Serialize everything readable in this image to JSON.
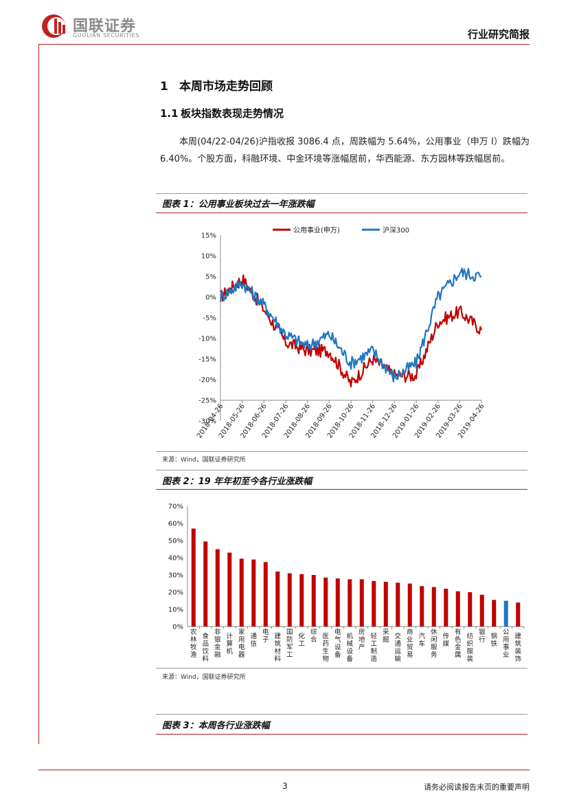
{
  "header": {
    "brand_cn": "国联证券",
    "brand_en": "GUOLIAN SECURITIES",
    "report_type": "行业研究简报"
  },
  "section": {
    "number": "1",
    "title": "本周市场走势回顾",
    "sub_number": "1.1",
    "sub_title": "板块指数表现走势情况"
  },
  "paragraph": "本周(04/22-04/26)沪指收报 3086.4 点，周跌幅为 5.64%，公用事业（申万 I）跌幅为 6.40%。个股方面，科融环境、中金环境等涨幅居前，华西能源、东方园林等跌幅居前。",
  "figures": [
    {
      "title": "图表 1：公用事业板块过去一年涨跌幅",
      "source": "来源：Wind，国联证券研究所"
    },
    {
      "title": "图表 2：19 年年初至今各行业涨跌幅",
      "source": "来源：Wind，国联证券研究所"
    },
    {
      "title": "图表 3：本周各行业涨跌幅"
    }
  ],
  "colors": {
    "accent": "#b01c1c",
    "series_red": "#c00000",
    "series_blue": "#1f77c0"
  },
  "chart_data": [
    {
      "type": "line",
      "legend_position": "top",
      "ylim": [
        -30,
        15
      ],
      "yticks": [
        "15%",
        "10%",
        "5%",
        "0%",
        "-5%",
        "-10%",
        "-15%",
        "-20%",
        "-25%",
        "-30%"
      ],
      "x": [
        "2018-04-26",
        "2018-05-26",
        "2018-06-26",
        "2018-07-26",
        "2018-08-26",
        "2018-09-26",
        "2018-10-26",
        "2018-11-26",
        "2018-12-26",
        "2019-01-26",
        "2019-02-26",
        "2019-03-26",
        "2019-04-26"
      ],
      "series": [
        {
          "name": "公用事业(申万)",
          "color": "#c00000",
          "values": [
            0,
            4.5,
            -3,
            -11,
            -13,
            -13,
            -21,
            -15,
            -19,
            -19,
            -6,
            -3.5,
            -8
          ]
        },
        {
          "name": "沪深300",
          "color": "#1f77c0",
          "values": [
            0,
            3.5,
            -2,
            -9,
            -12,
            -9,
            -16,
            -13,
            -19.5,
            -16,
            0,
            6,
            5
          ]
        }
      ]
    },
    {
      "type": "bar",
      "ylim": [
        0,
        70
      ],
      "yticks": [
        "70%",
        "60%",
        "50%",
        "40%",
        "30%",
        "20%",
        "10%",
        "0%"
      ],
      "categories": [
        "农林牧渔",
        "食品饮料",
        "非银金融",
        "计算机",
        "家用电器",
        "通信",
        "电子",
        "建筑材料",
        "国防军工",
        "化工",
        "综合",
        "医药生物",
        "电气设备",
        "机械设备",
        "房地产",
        "轻工制造",
        "采掘",
        "交通运输",
        "商业贸易",
        "汽车",
        "休闲服务",
        "传媒",
        "有色金属",
        "纺织服装",
        "银行",
        "钢铁",
        "公用事业",
        "建筑装饰"
      ],
      "values": [
        57,
        49.5,
        45,
        43,
        39.5,
        39,
        37.5,
        32,
        31,
        30.5,
        30,
        28.5,
        28,
        27.5,
        27.5,
        26.5,
        26,
        25.5,
        25,
        23.5,
        23,
        22,
        20.5,
        20,
        18.5,
        15.5,
        15,
        14
      ],
      "highlight_index": 26
    }
  ],
  "footer": {
    "page_number": "3",
    "disclaimer": "请务必阅读报告末页的重要声明"
  }
}
